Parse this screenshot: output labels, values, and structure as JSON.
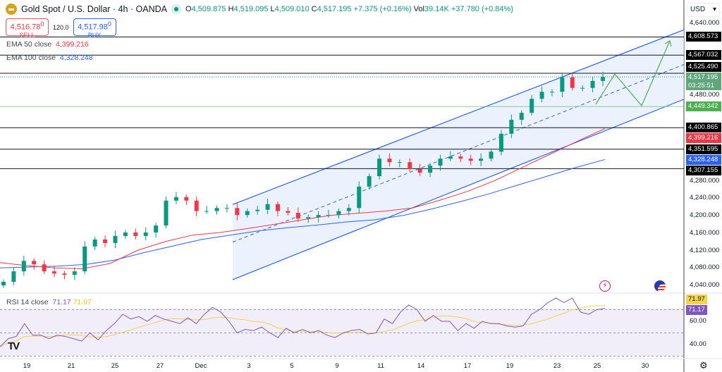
{
  "header": {
    "symbol": "Gold Spot / U.S. Dollar · 4h · OANDA",
    "open": "4,509.875",
    "high": "4,519.095",
    "low": "4,509.010",
    "close": "4,517.195",
    "change": "+7.375 (+0.16%)",
    "vol": "39.14K",
    "change2": "+37.780 (+0.84%)",
    "o_lbl": "O",
    "h_lbl": "H",
    "l_lbl": "L",
    "c_lbl": "C",
    "vol_lbl": "Vol"
  },
  "trade": {
    "sell_price": "4,516.78",
    "sell_sup": "0",
    "sell_label": "SELL",
    "spread": "120.0",
    "buy_price": "4,517.98",
    "buy_sup": "0",
    "buy_label": "BUY"
  },
  "indicators": {
    "ema50_label": "EMA 50 close",
    "ema50_value": "4,399.216",
    "ema100_label": "EMA 100 close",
    "ema100_value": "4,328.248",
    "rsi_label": "RSI 14 close",
    "rsi_value": "71.17",
    "rsi_signal": "71.97"
  },
  "currency": "USD",
  "colors": {
    "up": "#089981",
    "down": "#f23645",
    "ema50": "#f23645",
    "ema100": "#2962ff",
    "channel": "#2962ff",
    "rsi": "#7e57c2",
    "rsi_signal": "#f5d34b",
    "projection": "#4caf50"
  },
  "chart_data": {
    "type": "candlestick",
    "ylim": [
      4020,
      4650
    ],
    "yticks": [
      4040,
      4080,
      4120,
      4160,
      4200,
      4240,
      4280,
      4320,
      4360,
      4400,
      4440,
      4480,
      4520,
      4560,
      4600,
      4640
    ],
    "ytick_labels": [
      "4,040.000",
      "4,080.000",
      "4,120.000",
      "4,160.000",
      "4,200.000",
      "4,240.000",
      "4,280.000"
    ],
    "xtick_labels": [
      "19",
      "21",
      "25",
      "27",
      "Dec",
      "3",
      "5",
      "9",
      "11",
      "14",
      "17",
      "19",
      "23",
      "25",
      "30"
    ],
    "closes": [
      4048,
      4072,
      4096,
      4088,
      4072,
      4067,
      4064,
      4072,
      4129,
      4145,
      4137,
      4153,
      4161,
      4153,
      4161,
      4177,
      4234,
      4242,
      4234,
      4210,
      4210,
      4217,
      4217,
      4201,
      4210,
      4213,
      4226,
      4210,
      4206,
      4193,
      4196,
      4201,
      4201,
      4210,
      4217,
      4266,
      4290,
      4330,
      4322,
      4322,
      4306,
      4298,
      4314,
      4330,
      4335,
      4330,
      4325,
      4330,
      4346,
      4387,
      4419,
      4435,
      4467,
      4483,
      4483,
      4516,
      4492,
      4492,
      4508,
      4517
    ],
    "ema50": [
      4092,
      4085,
      4080,
      4078,
      4090,
      4120,
      4140,
      4155,
      4161,
      4170,
      4180,
      4190,
      4200,
      4205,
      4210,
      4217,
      4235,
      4255,
      4280,
      4310,
      4340,
      4370,
      4399
    ],
    "ema100": [
      4080,
      4082,
      4084,
      4088,
      4098,
      4115,
      4130,
      4145,
      4155,
      4165,
      4172,
      4178,
      4185,
      4190,
      4200,
      4215,
      4232,
      4250,
      4270,
      4290,
      4310,
      4328
    ],
    "horizontal_levels": [
      4608.573,
      4567.032,
      4525.49,
      4449.342,
      4400.865,
      4351.595,
      4307.155
    ],
    "level_labels": [
      "4,608.573",
      "4,567.032",
      "4,525.490",
      "4,449.342",
      "4,400.865",
      "4,351.595",
      "4,307.155"
    ],
    "current_price": "4,517.195",
    "countdown": "03:25:51",
    "channel": {
      "upper": [
        4225,
        4625
      ],
      "lower": [
        4053,
        4466
      ]
    },
    "rsi": {
      "ylim": [
        25,
        85
      ],
      "levels": [
        70,
        50,
        30
      ],
      "tick_labels": [
        "60.00",
        "40.00"
      ],
      "values": [
        38,
        45,
        47,
        58,
        48,
        48,
        45,
        48,
        47,
        45,
        43,
        50,
        44,
        52,
        58,
        66,
        62,
        64,
        60,
        65,
        62,
        60,
        58,
        63,
        58,
        66,
        72,
        68,
        60,
        50,
        53,
        52,
        55,
        50,
        46,
        54,
        50,
        53,
        50,
        52,
        48,
        46,
        50,
        52,
        53,
        49,
        50,
        62,
        58,
        68,
        74,
        70,
        60,
        65,
        60,
        60,
        52,
        58,
        54,
        60,
        58,
        58,
        56,
        55,
        56,
        66,
        70,
        76,
        80,
        76,
        80,
        68,
        66,
        70,
        71.17
      ]
    }
  }
}
